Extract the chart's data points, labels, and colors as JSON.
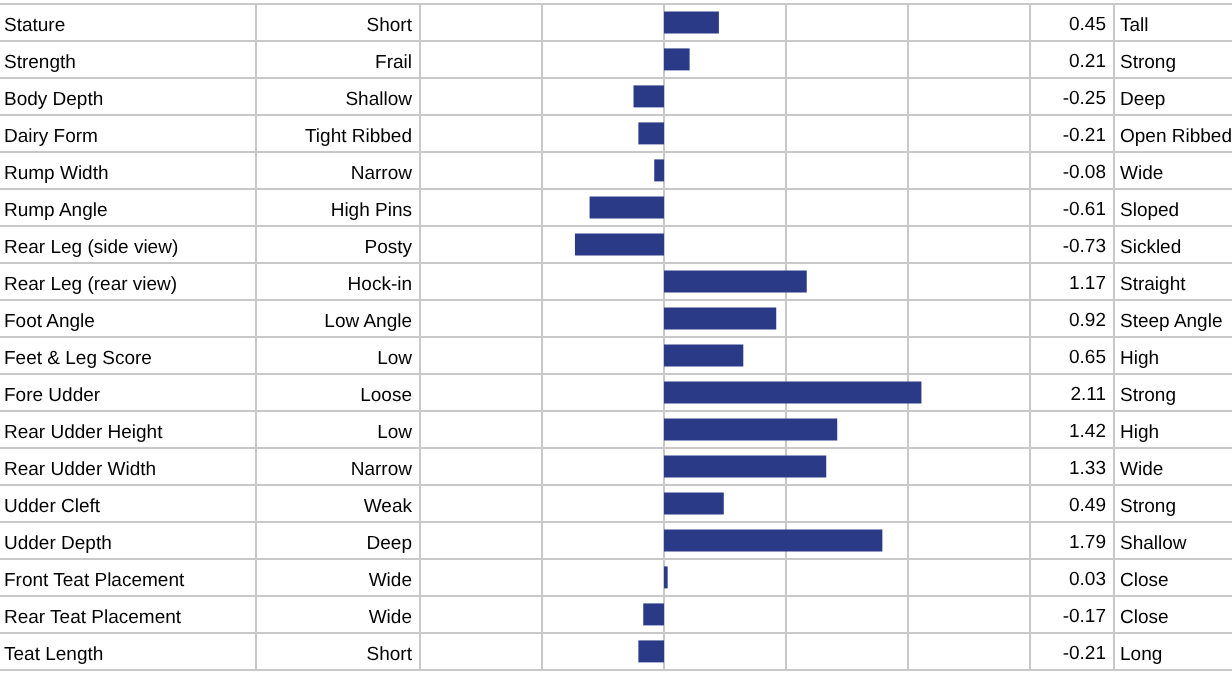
{
  "chart_data": {
    "type": "bar",
    "orientation": "horizontal",
    "categories": [
      "Stature",
      "Strength",
      "Body Depth",
      "Dairy Form",
      "Rump Width",
      "Rump Angle",
      "Rear Leg (side view)",
      "Rear Leg (rear view)",
      "Foot Angle",
      "Feet & Leg Score",
      "Fore Udder",
      "Rear Udder Height",
      "Rear Udder Width",
      "Udder Cleft",
      "Udder Depth",
      "Front Teat Placement",
      "Rear Teat Placement",
      "Teat Length"
    ],
    "values": [
      0.45,
      0.21,
      -0.25,
      -0.21,
      -0.08,
      -0.61,
      -0.73,
      1.17,
      0.92,
      0.65,
      2.11,
      1.42,
      1.33,
      0.49,
      1.79,
      0.03,
      -0.17,
      -0.21
    ],
    "color": "#2b3a87",
    "xlim": [
      -2,
      3
    ],
    "xticks": [
      {
        "value": -2,
        "label": null
      },
      {
        "value": -1,
        "label": null
      },
      {
        "value": 0,
        "label": null
      },
      {
        "value": 1,
        "label": null
      },
      {
        "value": 2,
        "label": null
      },
      {
        "value": 3,
        "label": null
      }
    ],
    "tick_labels": "y",
    "grid": "x",
    "data_labels": true,
    "annotations": [
      "Short",
      "Tall",
      "Frail",
      "Strong",
      "Shallow",
      "Deep",
      "Tight Ribbed",
      "Open Ribbed",
      "Narrow",
      "Wide",
      "High Pins",
      "Sloped",
      "Posty",
      "Sickled",
      "Hock-in",
      "Straight",
      "Low Angle",
      "Steep Angle",
      "Low",
      "High",
      "Loose",
      "Strong",
      "Low",
      "High",
      "Narrow",
      "Wide",
      "Weak",
      "Strong",
      "Deep",
      "Shallow",
      "Wide",
      "Close",
      "Wide",
      "Close",
      "Short",
      "Long"
    ]
  }
}
